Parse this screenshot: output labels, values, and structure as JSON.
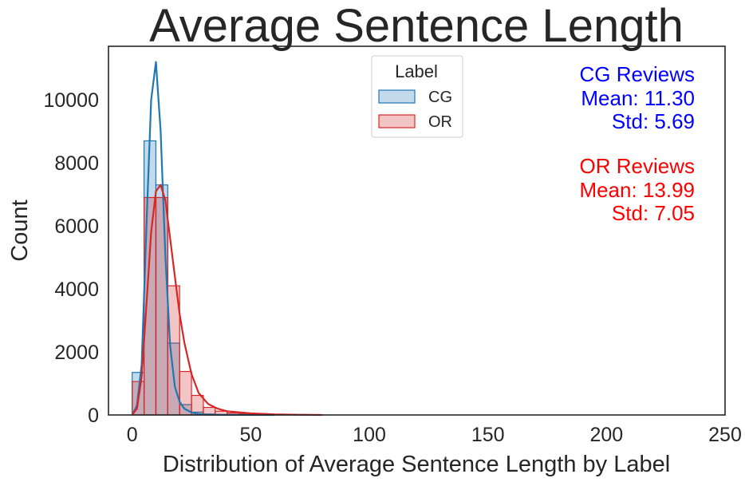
{
  "chart_data": {
    "type": "histogram",
    "title": "Average Sentence Length",
    "xlabel": "Distribution of Average Sentence Length by Label",
    "ylabel": "Count",
    "xlim": [
      -10,
      250
    ],
    "ylim": [
      0,
      11700
    ],
    "xticks": [
      "0",
      "50",
      "100",
      "150",
      "200",
      "250"
    ],
    "xtick_values": [
      0,
      50,
      100,
      150,
      200,
      250
    ],
    "yticks": [
      "0",
      "2000",
      "4000",
      "6000",
      "8000",
      "10000"
    ],
    "ytick_values": [
      0,
      2000,
      4000,
      6000,
      8000,
      10000
    ],
    "grid": false,
    "legend": {
      "title": "Label",
      "position": "top-center",
      "entries": [
        "CG",
        "OR"
      ]
    },
    "bin_width": 5,
    "bin_edges": [
      0,
      5,
      10,
      15,
      20,
      25,
      30,
      35,
      40,
      45,
      50,
      55,
      60,
      65,
      70,
      75
    ],
    "series": [
      {
        "name": "CG",
        "color": "#1f77b4",
        "counts": [
          1350,
          8700,
          7300,
          2280,
          330,
          90,
          30,
          10,
          5,
          3,
          2,
          1,
          1,
          0,
          0
        ],
        "kde_x": [
          0,
          2,
          4,
          6,
          8,
          10,
          12,
          14,
          16,
          18,
          20,
          22,
          25,
          28,
          32,
          40,
          60
        ],
        "kde_y": [
          0,
          300,
          1600,
          6000,
          10000,
          11200,
          9000,
          5000,
          2200,
          900,
          420,
          200,
          80,
          30,
          10,
          3,
          0
        ]
      },
      {
        "name": "OR",
        "color": "#d62728",
        "counts": [
          1060,
          6900,
          6900,
          4100,
          1380,
          620,
          240,
          120,
          60,
          40,
          20,
          10,
          5,
          3,
          2
        ],
        "kde_x": [
          0,
          2,
          4,
          6,
          8,
          10,
          12,
          14,
          16,
          18,
          20,
          22,
          25,
          28,
          32,
          36,
          40,
          50,
          60,
          70,
          80
        ],
        "kde_y": [
          0,
          200,
          1200,
          3500,
          5800,
          7100,
          7300,
          6800,
          5600,
          4400,
          3200,
          2300,
          1300,
          700,
          350,
          200,
          120,
          50,
          20,
          8,
          0
        ]
      }
    ],
    "annotations": [
      {
        "lines": [
          "CG Reviews",
          "Mean: 11.30",
          "Std: 5.69"
        ],
        "color": "#0000ff"
      },
      {
        "lines": [
          "OR Reviews",
          "Mean: 13.99",
          "Std: 7.05"
        ],
        "color": "#ff0000"
      }
    ]
  }
}
